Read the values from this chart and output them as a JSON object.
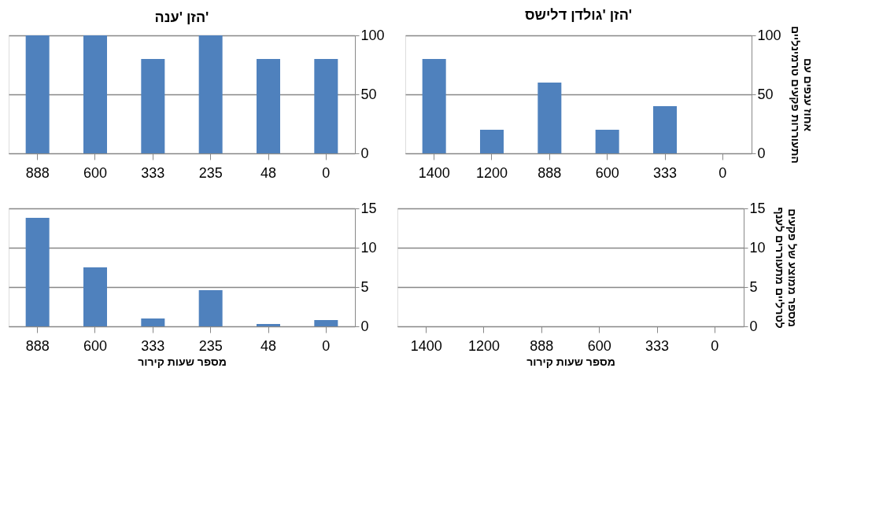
{
  "chart_data": [
    {
      "type": "bar",
      "title": "הזן 'ענה'",
      "categories": [
        "888",
        "600",
        "333",
        "235",
        "48",
        "0"
      ],
      "values": [
        100,
        100,
        80,
        100,
        80,
        80
      ],
      "color": "#4f81bd",
      "ylim": [
        0,
        100
      ],
      "yticks": [
        0,
        50,
        100
      ],
      "grid": "y"
    },
    {
      "type": "bar",
      "title": "הזן 'גולדן דלישס'",
      "ylabel": "אחוז ענפים עם התעוררות פקעים טרמינליים",
      "categories": [
        "1400",
        "1200",
        "888",
        "600",
        "333",
        "0"
      ],
      "values": [
        80,
        20,
        60,
        20,
        40,
        0
      ],
      "color": "#4f81bd",
      "ylim": [
        0,
        100
      ],
      "yticks": [
        0,
        50,
        100
      ],
      "grid": "y"
    },
    {
      "type": "bar",
      "xlabel": "מספר שעות קירור",
      "categories": [
        "888",
        "600",
        "333",
        "235",
        "48",
        "0"
      ],
      "values": [
        13.8,
        7.5,
        1.0,
        4.6,
        0.3,
        0.8
      ],
      "color": "#4f81bd",
      "ylim": [
        0,
        15
      ],
      "yticks": [
        0,
        5,
        10,
        15
      ],
      "grid": "y"
    },
    {
      "type": "bar",
      "xlabel": "מספר שעות קירור",
      "ylabel": "מספר ממוצע של פקעים לטרליים מתעוררים לענף",
      "categories": [
        "1400",
        "1200",
        "888",
        "600",
        "333",
        "0"
      ],
      "values": [
        0,
        0,
        0,
        0,
        0,
        0
      ],
      "color": "#4f81bd",
      "ylim": [
        0,
        15
      ],
      "yticks": [
        0,
        5,
        10,
        15
      ],
      "grid": "y"
    }
  ]
}
